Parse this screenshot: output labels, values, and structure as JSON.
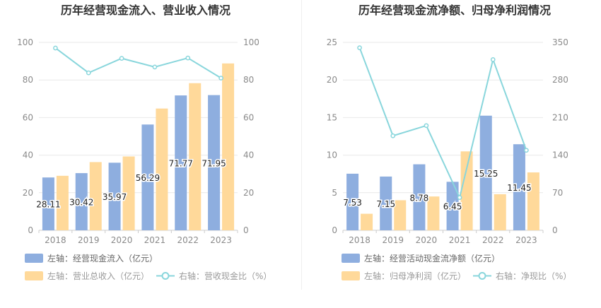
{
  "colors": {
    "bar_primary": "#8eaedf",
    "bar_secondary": "#ffd99a",
    "line": "#89d6dc",
    "grid": "#e9e9e9",
    "tick_text": "#8a8a8a",
    "title_text": "#333333",
    "label_text": "#222222",
    "legend_text": "#666666",
    "legend_muted_text": "#999999"
  },
  "chart_data": [
    {
      "type": "bar",
      "title": "历年经营现金流入、营业收入情况",
      "categories": [
        "2018",
        "2019",
        "2020",
        "2021",
        "2022",
        "2023"
      ],
      "left_axis": {
        "ylim": [
          0,
          100
        ],
        "ticks": [
          "0",
          "20",
          "40",
          "60",
          "80",
          "100"
        ]
      },
      "right_axis": {
        "ylim": [
          0,
          100
        ],
        "ticks": [
          "0",
          "20",
          "40",
          "60",
          "80",
          "100"
        ]
      },
      "series": [
        {
          "name": "左轴：经营现金流入（亿元）",
          "kind": "bar",
          "axis": "left",
          "color": "#8eaedf",
          "values": [
            28.11,
            30.42,
            35.97,
            56.29,
            71.77,
            71.95
          ],
          "data_labels": [
            "28.11",
            "30.42",
            "35.97",
            "56.29",
            "71.77",
            "71.95"
          ]
        },
        {
          "name": "左轴：营业总收入（亿元）",
          "kind": "bar",
          "axis": "left",
          "color": "#ffd99a",
          "values": [
            29.0,
            36.3,
            39.3,
            64.8,
            78.3,
            88.8
          ]
        },
        {
          "name": "右轴：营收现金比（%）",
          "kind": "line",
          "axis": "right",
          "color": "#89d6dc",
          "values": [
            97.0,
            83.8,
            91.5,
            86.9,
            91.7,
            81.0
          ]
        }
      ],
      "legend": [
        "左轴：经营现金流入（亿元）",
        "左轴：营业总收入（亿元）",
        "右轴：营收现金比（%）"
      ],
      "legend_placement": "bottom-left",
      "grid": true
    },
    {
      "type": "bar",
      "title": "历年经营现金流净额、归母净利润情况",
      "categories": [
        "2018",
        "2019",
        "2020",
        "2021",
        "2022",
        "2023"
      ],
      "left_axis": {
        "ylim": [
          0,
          25
        ],
        "ticks": [
          "0",
          "5",
          "10",
          "15",
          "20",
          "25"
        ]
      },
      "right_axis": {
        "ylim": [
          0,
          350
        ],
        "ticks": [
          "0",
          "70",
          "140",
          "210",
          "280",
          "350"
        ]
      },
      "series": [
        {
          "name": "左轴：经营活动现金流净额（亿元）",
          "kind": "bar",
          "axis": "left",
          "color": "#8eaedf",
          "values": [
            7.53,
            7.15,
            8.78,
            6.45,
            15.25,
            11.45
          ],
          "data_labels": [
            "7.53",
            "7.15",
            "8.78",
            "6.45",
            "15.25",
            "11.45"
          ]
        },
        {
          "name": "左轴：归母净利润（亿元）",
          "kind": "bar",
          "axis": "left",
          "color": "#ffd99a",
          "values": [
            2.2,
            4.0,
            4.5,
            10.5,
            4.8,
            7.7
          ]
        },
        {
          "name": "右轴：净现比（%）",
          "kind": "line",
          "axis": "right",
          "color": "#89d6dc",
          "values": [
            340,
            176,
            195,
            61,
            318,
            149
          ]
        }
      ],
      "legend": [
        "左轴：经营活动现金流净额（亿元）",
        "左轴：归母净利润（亿元）",
        "右轴：净现比（%）"
      ],
      "legend_placement": "bottom-left",
      "grid": true
    }
  ]
}
